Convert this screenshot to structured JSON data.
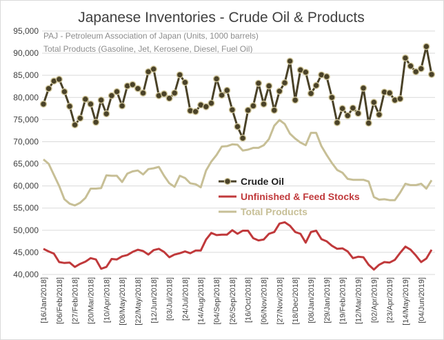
{
  "chart_data": {
    "type": "line",
    "title": "Japanese Inventories - Crude Oil & Products",
    "subtitle_lines": [
      "PAJ - Petroleum Association of Japan  (Units, 1000 barrels)",
      "Total Products (Gasoline, Jet, Kerosene, Diesel, Fuel Oil)"
    ],
    "xlabel": "",
    "ylabel": "",
    "ylim": [
      40000,
      95000
    ],
    "yticks": [
      40000,
      45000,
      50000,
      55000,
      60000,
      65000,
      70000,
      75000,
      80000,
      85000,
      90000,
      95000
    ],
    "ytick_labels": [
      "40,000",
      "45,000",
      "50,000",
      "55,000",
      "60,000",
      "65,000",
      "70,000",
      "75,000",
      "80,000",
      "85,000",
      "90,000",
      "95,000"
    ],
    "grid": "horizontal",
    "legend_position": "center",
    "n_points": 75,
    "x_tick_labels": [
      {
        "index": 0,
        "label": "[16/Jan/2018]"
      },
      {
        "index": 3,
        "label": "[06/Feb/2018]"
      },
      {
        "index": 6,
        "label": "[27/Feb/2018]"
      },
      {
        "index": 9,
        "label": "[20/Mar/2018]"
      },
      {
        "index": 12,
        "label": "[10/Apr/2018]"
      },
      {
        "index": 15,
        "label": "[08/May/2018]"
      },
      {
        "index": 18,
        "label": "[22/May/2018]"
      },
      {
        "index": 21,
        "label": "[12/Jun/2018]"
      },
      {
        "index": 24,
        "label": "[03/Jul/2018]"
      },
      {
        "index": 27,
        "label": "[24/Jul/2018]"
      },
      {
        "index": 30,
        "label": "[14/Aug/2018]"
      },
      {
        "index": 33,
        "label": "[04/Sep/2018]"
      },
      {
        "index": 36,
        "label": "[26/Sep/2018]"
      },
      {
        "index": 39,
        "label": "[16/Oct/2018]"
      },
      {
        "index": 42,
        "label": "[06/Nov/2018]"
      },
      {
        "index": 45,
        "label": "[27/Nov/2018]"
      },
      {
        "index": 48,
        "label": "[18/Dec/2018]"
      },
      {
        "index": 51,
        "label": "[08/Jan/2019]"
      },
      {
        "index": 54,
        "label": "[29/Jan/2019]"
      },
      {
        "index": 57,
        "label": "[19/Feb/2019]"
      },
      {
        "index": 60,
        "label": "[12/Mar/2019]"
      },
      {
        "index": 63,
        "label": "[02/Apr/2019]"
      },
      {
        "index": 66,
        "label": "[23/Apr/2019]"
      },
      {
        "index": 69,
        "label": "[14/May/2019]"
      },
      {
        "index": 72,
        "label": "[04/Jun/2019]"
      }
    ],
    "series": [
      {
        "name": "Crude Oil",
        "color": "#4a4228",
        "marker_fill": "#4a4228",
        "marker_edge": "#cfc59a",
        "has_markers": true,
        "values": [
          78500,
          82000,
          83700,
          84100,
          81300,
          78000,
          73800,
          75300,
          79600,
          78500,
          74400,
          79400,
          76300,
          80400,
          81300,
          78100,
          82600,
          82900,
          82000,
          81000,
          85800,
          86400,
          80400,
          80800,
          79800,
          81000,
          85100,
          83400,
          77000,
          76800,
          78300,
          77900,
          78700,
          84200,
          80500,
          81600,
          77200,
          73400,
          70800,
          77100,
          78100,
          83200,
          78500,
          82600,
          77100,
          81400,
          83300,
          88200,
          79400,
          86200,
          85700,
          80900,
          82700,
          85100,
          84700,
          80000,
          74300,
          77500,
          75900,
          77600,
          76400,
          82100,
          74200,
          78900,
          76100,
          81200,
          81000,
          79400,
          79700,
          88900,
          87100,
          85800,
          86500,
          91500,
          85200
        ]
      },
      {
        "name": "Unfinished & Feed Stocks",
        "color": "#c0393b",
        "has_markers": false,
        "values": [
          45800,
          45200,
          44700,
          42800,
          42600,
          42700,
          41700,
          42400,
          42900,
          43700,
          43400,
          41300,
          41700,
          43500,
          43400,
          44100,
          44400,
          45100,
          45600,
          45300,
          44500,
          45500,
          45800,
          45100,
          43900,
          44500,
          44800,
          45200,
          44800,
          45400,
          45400,
          47900,
          49400,
          48900,
          49000,
          49000,
          50000,
          49200,
          49900,
          49900,
          48200,
          47700,
          47900,
          49200,
          49600,
          51500,
          51800,
          51000,
          49600,
          49200,
          47200,
          49600,
          49900,
          48000,
          47500,
          46500,
          45800,
          45900,
          45200,
          43700,
          44000,
          43900,
          42200,
          41100,
          42200,
          42800,
          42700,
          43300,
          44900,
          46300,
          45600,
          44300,
          42800,
          43600,
          45600
        ]
      },
      {
        "name": "Total Products",
        "color": "#c7bf96",
        "has_markers": false,
        "values": [
          66000,
          65000,
          62500,
          60000,
          57000,
          56000,
          55600,
          56200,
          57300,
          59400,
          59400,
          59500,
          62400,
          62300,
          62300,
          60900,
          62800,
          63300,
          63500,
          62600,
          63800,
          64000,
          64300,
          62300,
          60600,
          59800,
          62300,
          61800,
          60600,
          60400,
          59700,
          63500,
          65500,
          67000,
          68900,
          69000,
          69400,
          69300,
          68000,
          68200,
          68600,
          68600,
          69200,
          70600,
          73600,
          74900,
          74000,
          71800,
          70700,
          69800,
          69200,
          72000,
          72000,
          69000,
          67000,
          65200,
          63600,
          63000,
          61600,
          61400,
          61400,
          61400,
          61000,
          57500,
          56900,
          57000,
          56800,
          56800,
          58500,
          60500,
          60200,
          60200,
          60500,
          59400,
          61300
        ]
      }
    ]
  }
}
